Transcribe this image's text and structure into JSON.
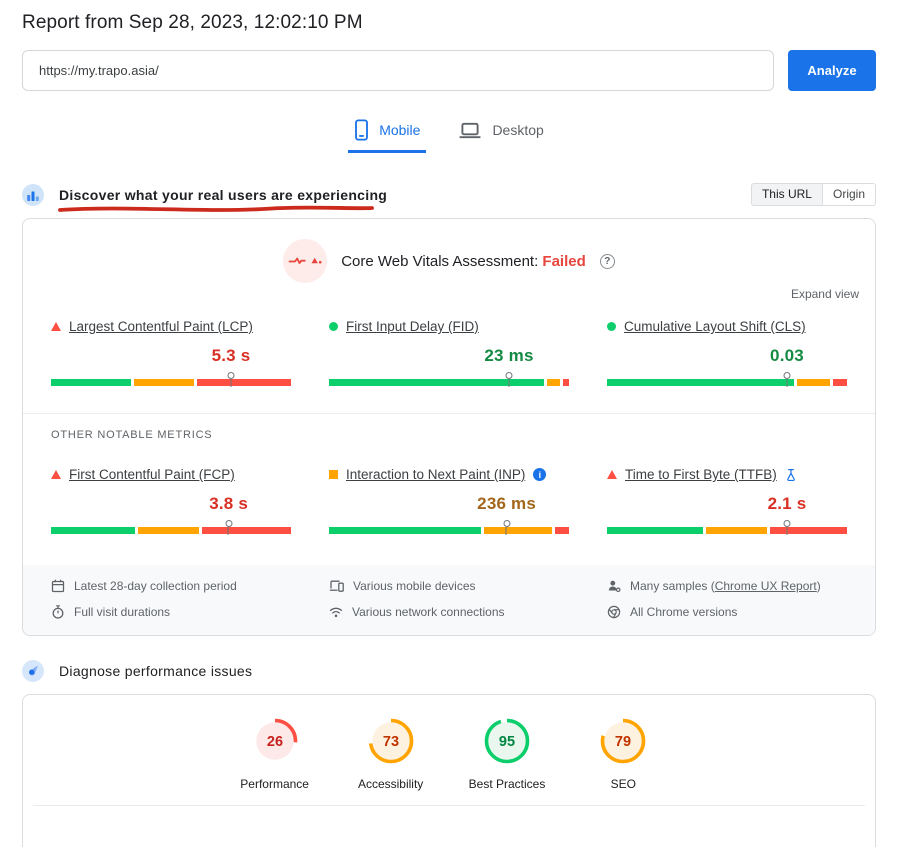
{
  "report": {
    "title": "Report from Sep 28, 2023, 12:02:10 PM"
  },
  "url_bar": {
    "value": "https://my.trapo.asia/",
    "analyze_label": "Analyze"
  },
  "tabs": [
    {
      "label": "Mobile",
      "active": true
    },
    {
      "label": "Desktop",
      "active": false
    }
  ],
  "field_section": {
    "heading": "Discover what your real users are experiencing",
    "scope_toggle": [
      {
        "label": "This URL",
        "active": true
      },
      {
        "label": "Origin",
        "active": false
      }
    ],
    "assessment": {
      "prefix": "Core Web Vitals Assessment:",
      "status": "Failed"
    },
    "expand_view": "Expand view",
    "other_metrics_label": "OTHER NOTABLE METRICS",
    "core_metrics": [
      {
        "name": "Largest Contentful Paint (LCP)",
        "value": "5.3 s",
        "rating": "poor",
        "distribution": {
          "good": 34,
          "needs_improvement": 26,
          "poor": 40
        },
        "marker_pct": 75
      },
      {
        "name": "First Input Delay (FID)",
        "value": "23 ms",
        "rating": "good",
        "distribution": {
          "good": 92,
          "needs_improvement": 5.5,
          "poor": 2.5
        },
        "marker_pct": 75
      },
      {
        "name": "Cumulative Layout Shift (CLS)",
        "value": "0.03",
        "rating": "good",
        "distribution": {
          "good": 80,
          "needs_improvement": 14,
          "poor": 6
        },
        "marker_pct": 75
      }
    ],
    "other_metrics": [
      {
        "name": "First Contentful Paint (FCP)",
        "value": "3.8 s",
        "rating": "poor",
        "distribution": {
          "good": 36,
          "needs_improvement": 26,
          "poor": 38
        },
        "marker_pct": 74
      },
      {
        "name": "Interaction to Next Paint (INP)",
        "value": "236 ms",
        "rating": "average",
        "distribution": {
          "good": 65,
          "needs_improvement": 29,
          "poor": 6
        },
        "marker_pct": 74
      },
      {
        "name": "Time to First Byte (TTFB)",
        "value": "2.1 s",
        "rating": "poor",
        "distribution": {
          "good": 41,
          "needs_improvement": 26,
          "poor": 33
        },
        "marker_pct": 75
      }
    ],
    "footnotes": {
      "collection": [
        {
          "icon": "calendar-icon",
          "text": "Latest 28-day collection period"
        },
        {
          "icon": "stopwatch-icon",
          "text": "Full visit durations"
        }
      ],
      "devices": [
        {
          "icon": "devices-icon",
          "text": "Various mobile devices"
        },
        {
          "icon": "network-icon",
          "text": "Various network connections"
        }
      ],
      "samples": [
        {
          "icon": "samples-icon",
          "text_prefix": "Many samples (",
          "link_label": "Chrome UX Report",
          "text_suffix": ")"
        },
        {
          "icon": "chrome-icon",
          "text": "All Chrome versions"
        }
      ]
    }
  },
  "lab_section": {
    "heading": "Diagnose performance issues",
    "scores": [
      {
        "label": "Performance",
        "value": 26,
        "level": "poor"
      },
      {
        "label": "Accessibility",
        "value": 73,
        "level": "average"
      },
      {
        "label": "Best Practices",
        "value": 95,
        "level": "good"
      },
      {
        "label": "SEO",
        "value": 79,
        "level": "average"
      }
    ]
  },
  "colors": {
    "accent_blue": "#1a73e8",
    "good": "#0cce6b",
    "average": "#ffa400",
    "poor": "#ff4e42",
    "failed": "#e8453c",
    "value_good": "#148a43",
    "value_average": "#a3661c",
    "value_poor": "#d93025",
    "annotation_red": "#cc2a1d",
    "score_levels": {
      "poor": {
        "arc": "#ff4e42",
        "fill": "#fce9e8",
        "text": "#c5221f"
      },
      "average": {
        "arc": "#ffa400",
        "fill": "#fdf2e0",
        "text": "#c33300"
      },
      "good": {
        "arc": "#0cce6b",
        "fill": "#e9f7ef",
        "text": "#018642"
      }
    }
  }
}
